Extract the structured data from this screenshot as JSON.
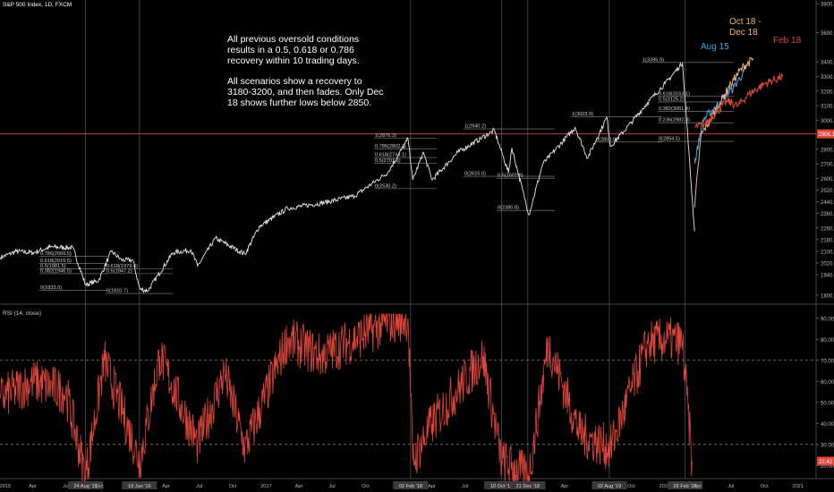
{
  "symbol_title": "S&P 500 Index, 1D, FXCM",
  "annotation": {
    "line1": "All previous oversold conditions results in a 0.5, 0.618 or 0.786 recovery within 10 trading days.",
    "line2": "All scenarios show a recovery to 3180-3200, and then fades. Only Dec 18 shows further lows below 2850."
  },
  "colors": {
    "background": "#000000",
    "price": "#e8e8e8",
    "rsi": "#e0463a",
    "level": "#e0463a",
    "aug15": "#4aa3df",
    "oct18": "#f0b27a",
    "feb18": "#e0463a",
    "grid_line": "#5a5a5a"
  },
  "chart_data": [
    {
      "type": "line",
      "title": "S&P 500 Index, 1D, FXCM",
      "x_tick_labels": [
        "2015",
        "Apr",
        "Jul",
        "24 Aug '15",
        "Oct",
        "19 Jan '16",
        "Apr",
        "Jul",
        "Oct",
        "2017",
        "Apr",
        "Jul",
        "Oct",
        "20",
        "02 Feb '18",
        "Apr",
        "Jul",
        "10 Oct '18",
        "21 Dec '18",
        "Apr",
        "02 Aug '19",
        "Oct",
        "2020",
        "26 Feb '20",
        "Apr",
        "Jul",
        "Oct",
        "2021"
      ],
      "y_ticks": [
        1800,
        1940,
        2020,
        2100,
        2180,
        2260,
        2360,
        2440,
        2520,
        2600,
        2700,
        2800,
        2900,
        3000,
        3100,
        3200,
        3300,
        3400,
        3600,
        3800
      ],
      "y_tick_labels": [
        "1800.0",
        "1940.0",
        "2020.0",
        "2100.0",
        "2180.0",
        "2260.0",
        "2360.0",
        "2440.0",
        "2520.0",
        "2600.0",
        "2700.0",
        "2800.0",
        "2900.0",
        "3000.0",
        "3100.0",
        "3200.0",
        "3300.0",
        "3400.0",
        "3600.0",
        "3800.0"
      ],
      "ylim": [
        1750,
        3800
      ],
      "horizontal_level": {
        "value": 2906,
        "label": "2906.1"
      },
      "series": [
        {
          "x": [
            "2015-01-02",
            "2015-02-15",
            "2015-04-01",
            "2015-05-20",
            "2015-07-20",
            "2015-08-24",
            "2015-09-29",
            "2015-11-03",
            "2015-12-01",
            "2016-01-01",
            "2016-01-20",
            "2016-02-11",
            "2016-04-20",
            "2016-06-08",
            "2016-06-27",
            "2016-08-15",
            "2016-11-04",
            "2016-12-13",
            "2017-03-01",
            "2017-06-01",
            "2017-09-01",
            "2017-12-01",
            "2018-01-26",
            "2018-02-08",
            "2018-03-09",
            "2018-04-02",
            "2018-06-12",
            "2018-09-20",
            "2018-10-29",
            "2018-11-07",
            "2018-12-24",
            "2019-01-31",
            "2019-04-30",
            "2019-06-03",
            "2019-07-26",
            "2019-08-05",
            "2019-09-30",
            "2019-11-15",
            "2020-01-02",
            "2020-02-19",
            "2020-03-23"
          ],
          "values": [
            2058,
            2100,
            2090,
            2130,
            2125,
            1870,
            1900,
            2100,
            2040,
            2040,
            1840,
            1830,
            2090,
            2110,
            2000,
            2190,
            2080,
            2270,
            2395,
            2430,
            2480,
            2640,
            2872,
            2590,
            2780,
            2590,
            2780,
            2930,
            2640,
            2810,
            2350,
            2700,
            2950,
            2740,
            3020,
            2820,
            2980,
            3120,
            3250,
            3393,
            2237
          ]
        }
      ],
      "projections": [
        {
          "name": "Aug 15",
          "x": [
            "2020-03-23",
            "2020-04-15",
            "2020-05-15",
            "2020-06-10",
            "2020-07-10",
            "2020-08-05"
          ],
          "values": [
            2700,
            3000,
            3080,
            3150,
            3230,
            3330
          ]
        },
        {
          "name": "Oct 18 - Dec 18",
          "x": [
            "2020-03-23",
            "2020-04-10",
            "2020-05-05",
            "2020-06-01",
            "2020-07-01",
            "2020-08-01",
            "2020-09-01"
          ],
          "values": [
            2400,
            2900,
            3000,
            3120,
            3250,
            3360,
            3420
          ]
        },
        {
          "name": "Feb 18",
          "x": [
            "2020-03-23",
            "2020-04-20",
            "2020-05-20",
            "2020-06-20",
            "2020-07-20",
            "2020-08-20",
            "2020-10-01",
            "2020-11-20"
          ],
          "values": [
            2950,
            2970,
            3050,
            3130,
            3100,
            3180,
            3250,
            3300
          ]
        }
      ],
      "fib_levels": [
        {
          "label": "0.786(2066.5)",
          "value": 2066.5
        },
        {
          "label": "0.618(2016.5)",
          "value": 2016.5
        },
        {
          "label": "0.5(1981.5)",
          "value": 1981.5
        },
        {
          "label": "0.382(1946.5)",
          "value": 1946.5
        },
        {
          "label": "0(1833.0)",
          "value": 1833.0
        },
        {
          "label": "0.618(1979.4)",
          "value": 1979.4
        },
        {
          "label": "0.5(1947.2)",
          "value": 1947.2
        },
        {
          "label": "0(1810.7)",
          "value": 1810.7
        },
        {
          "label": "1(2876.3)",
          "value": 2876.3
        },
        {
          "label": "0.786(2802.2)",
          "value": 2802.2
        },
        {
          "label": "0.618(2744.1)",
          "value": 2744.1
        },
        {
          "label": "0.5(2703.3)",
          "value": 2703.3
        },
        {
          "label": "0(2530.2)",
          "value": 2530.2
        },
        {
          "label": "1(2940.2)",
          "value": 2940.2
        },
        {
          "label": "0(2615.0)",
          "value": 2615.0
        },
        {
          "label": "0.5(2601.9)",
          "value": 2601.9
        },
        {
          "label": "0(2380.8)",
          "value": 2380.8
        },
        {
          "label": "1(3023.9)",
          "value": 3023.9
        },
        {
          "label": "0(2850.0)",
          "value": 2850.0
        },
        {
          "label": "1(3395.9)",
          "value": 3395.9
        },
        {
          "label": "0.618(3163.1)",
          "value": 3163.1
        },
        {
          "label": "0.5(3125.2)",
          "value": 3125.2
        },
        {
          "label": "0.382(3061.4)",
          "value": 3061.4
        },
        {
          "label": "0.236(2982.3)",
          "value": 2982.3
        },
        {
          "label": "0(2854.5)",
          "value": 2854.5
        }
      ],
      "grid": false
    },
    {
      "type": "line",
      "title": "RSI (14, close)",
      "y_ticks": [
        20,
        30,
        40,
        50,
        60,
        70,
        80,
        90
      ],
      "y_tick_labels": [
        "20.00",
        "30.00",
        "40.00",
        "50.00",
        "60.00",
        "70.00",
        "80.00",
        "90.00"
      ],
      "ylim": [
        15,
        95
      ],
      "reference_lines": [
        30,
        70
      ],
      "last_value_label": "22.42",
      "series": [
        {
          "x": [
            "2015-01-02",
            "2015-04-01",
            "2015-07-01",
            "2015-08-24",
            "2015-10-15",
            "2016-01-20",
            "2016-03-15",
            "2016-06-27",
            "2016-09-09",
            "2016-11-04",
            "2017-03-01",
            "2017-06-01",
            "2017-12-01",
            "2018-01-26",
            "2018-02-08",
            "2018-04-02",
            "2018-08-20",
            "2018-10-10",
            "2018-12-24",
            "2019-02-15",
            "2019-05-13",
            "2019-08-05",
            "2019-11-15",
            "2020-01-10",
            "2020-02-19",
            "2020-03-16"
          ],
          "values": [
            52,
            60,
            55,
            15,
            70,
            22,
            72,
            30,
            64,
            28,
            80,
            72,
            88,
            90,
            22,
            40,
            72,
            22,
            15,
            78,
            35,
            28,
            78,
            80,
            78,
            22
          ]
        }
      ]
    }
  ]
}
